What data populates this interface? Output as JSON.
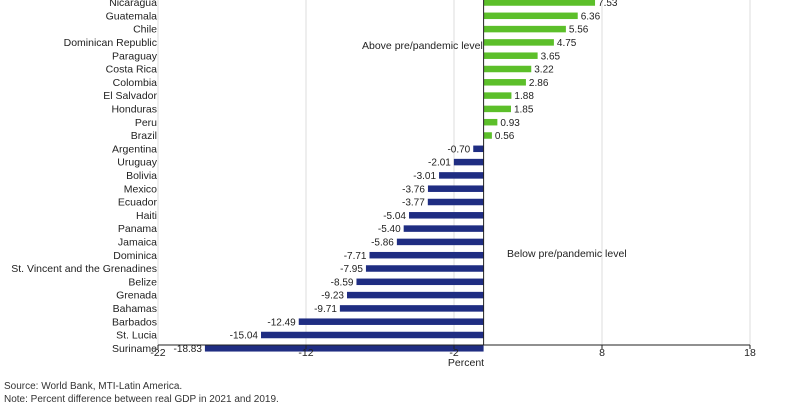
{
  "chart_data": {
    "type": "bar",
    "orientation": "horizontal",
    "categories": [
      "Nicaragua",
      "Guatemala",
      "Chile",
      "Dominican Republic",
      "Paraguay",
      "Costa Rica",
      "Colombia",
      "El Salvador",
      "Honduras",
      "Peru",
      "Brazil",
      "Argentina",
      "Uruguay",
      "Bolivia",
      "Mexico",
      "Ecuador",
      "Haiti",
      "Panama",
      "Jamaica",
      "Dominica",
      "St. Vincent and the Grenadines",
      "Belize",
      "Grenada",
      "Bahamas",
      "Barbados",
      "St. Lucia",
      "Suriname"
    ],
    "values": [
      7.53,
      6.36,
      5.56,
      4.75,
      3.65,
      3.22,
      2.86,
      1.88,
      1.85,
      0.93,
      0.56,
      -0.7,
      -2.01,
      -3.01,
      -3.76,
      -3.77,
      -5.04,
      -5.4,
      -5.86,
      -7.71,
      -7.95,
      -8.59,
      -9.23,
      -9.71,
      -12.49,
      -15.04,
      -18.83
    ],
    "value_labels": [
      "7.53",
      "6.36",
      "5.56",
      "4.75",
      "3.65",
      "3.22",
      "2.86",
      "1.88",
      "1.85",
      "0.93",
      "0.56",
      "-0.70",
      "-2.01",
      "-3.01",
      "-3.76",
      "-3.77",
      "-5.04",
      "-5.40",
      "-5.86",
      "-7.71",
      "-7.95",
      "-8.59",
      "-9.23",
      "-9.71",
      "-12.49",
      "-15.04",
      "-18.83"
    ],
    "xlabel": "Percent",
    "xlim": [
      -22,
      18
    ],
    "xticks": [
      -22,
      -12,
      -2,
      8,
      18
    ],
    "xtick_labels": [
      "-22",
      "-12",
      "-2",
      "8",
      "18"
    ],
    "grid": "vertical",
    "annotations": {
      "above": "Above pre/pandemic level",
      "below": "Below pre/pandemic level"
    },
    "colors": {
      "positive": "#5cbf2a",
      "negative": "#1f2d82",
      "grid": "#dddddd",
      "axis": "#222222"
    }
  },
  "footer": {
    "source": "Source: World Bank, MTI-Latin America.",
    "note": "Note: Percent difference between real GDP in 2021 and 2019."
  }
}
